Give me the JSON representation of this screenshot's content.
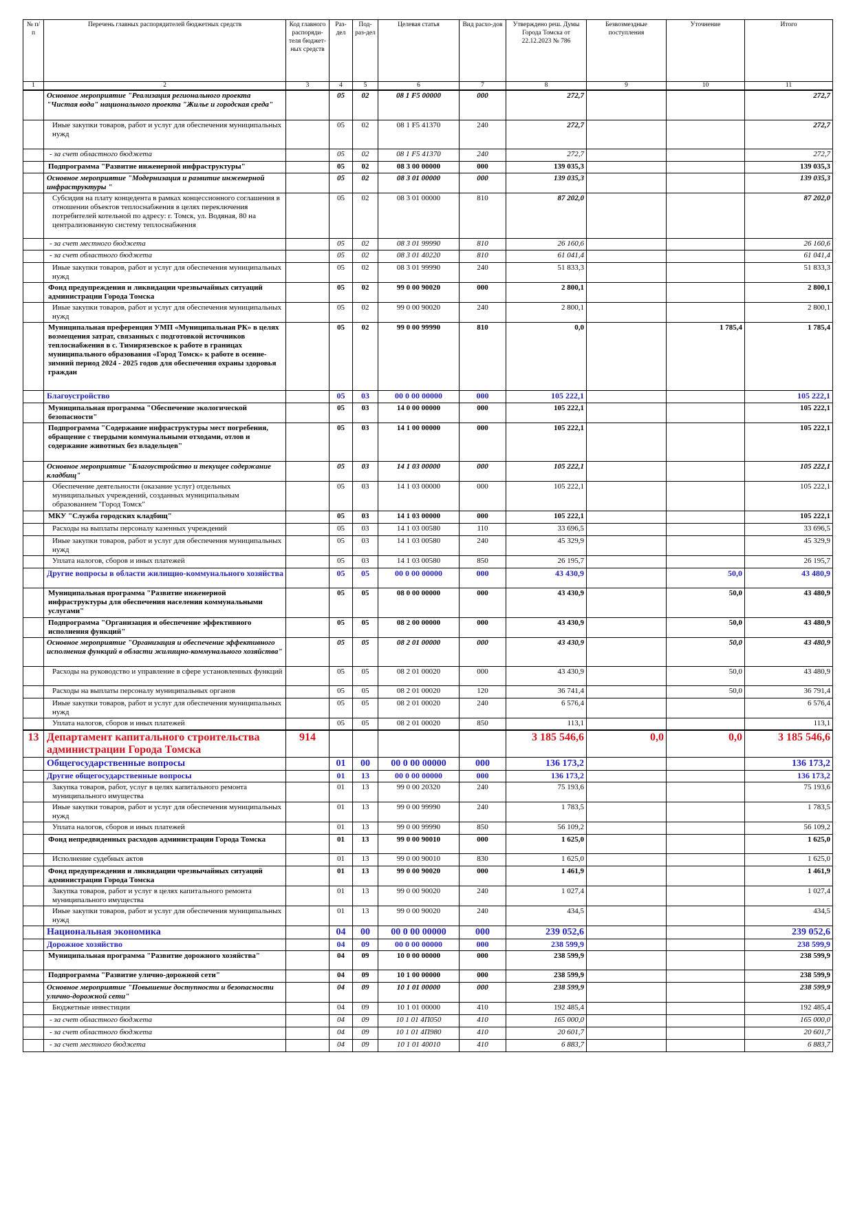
{
  "table": {
    "header": [
      "№ п/п",
      "Перечень главных распорядителей бюджетных средств",
      "Код главного распоряди-теля бюджет-ных средств",
      "Раз-дел",
      "Под-раз-дел",
      "Целевая статья",
      "Вид расхо-дов",
      "Утверждено реш. Думы Города Томска от 22.12.2023 № 786",
      "Безвозмездные поступления",
      "Уточнение",
      "Итого"
    ],
    "column_numbers": [
      "1",
      "2",
      "3",
      "4",
      "5",
      "6",
      "7",
      "8",
      "9",
      "10",
      "11"
    ],
    "rows": [
      [
        null,
        "Основное мероприятие \"Реализация регионального проекта \"Чистая вода\" национального проекта \"Жилье и городская среда\"",
        null,
        "05",
        "02",
        "08 1 F5 00000",
        "000",
        "272,7",
        null,
        null,
        "272,7"
      ],
      [
        null,
        "Иные закупки товаров, работ и услуг для обеспечения муниципальных нужд",
        null,
        "05",
        "02",
        "08 1 F5 41370",
        "240",
        "272,7",
        null,
        null,
        "272,7"
      ],
      [
        null,
        "- за счет областного бюджета",
        null,
        "05",
        "02",
        "08 1 F5 41370",
        "240",
        "272,7",
        null,
        null,
        "272,7"
      ],
      [
        null,
        "Подпрограмма \"Развитие инженерной инфраструктуры\"",
        null,
        "05",
        "02",
        "08 3 00 00000",
        "000",
        "139 035,3",
        null,
        null,
        "139 035,3"
      ],
      [
        null,
        "Основное мероприятие \"Модернизация и развитие инженерной инфраструктуры \"",
        null,
        "05",
        "02",
        "08 3 01 00000",
        "000",
        "139 035,3",
        null,
        null,
        "139 035,3"
      ],
      [
        null,
        "Субсидия на плату концедента в рамках концессионного соглашения в отношении объектов теплоснабжения в целях переключения потребителей котельной по адресу: г. Томск, ул. Водяная, 80 на централизованную систему теплоснабжения",
        null,
        "05",
        "02",
        "08 3 01 00000",
        "810",
        "87 202,0",
        null,
        null,
        "87 202,0"
      ],
      [
        null,
        "- за счет местного бюджета",
        null,
        "05",
        "02",
        "08 3 01 99990",
        "810",
        "26 160,6",
        null,
        null,
        "26 160,6"
      ],
      [
        null,
        "- за счет областного бюджета",
        null,
        "05",
        "02",
        "08 3 01 40220",
        "810",
        "61 041,4",
        null,
        null,
        "61 041,4"
      ],
      [
        null,
        "Иные закупки товаров, работ и услуг для обеспечения муниципальных нужд",
        null,
        "05",
        "02",
        "08 3 01 99990",
        "240",
        "51 833,3",
        null,
        null,
        "51 833,3"
      ],
      [
        null,
        "Фонд предупреждения и ликвидации чрезвычайных ситуаций администрации Города Томска",
        null,
        "05",
        "02",
        "99 0 00 90020",
        "000",
        "2 800,1",
        null,
        null,
        "2 800,1"
      ],
      [
        null,
        "Иные закупки товаров, работ и услуг для обеспечения муниципальных нужд",
        null,
        "05",
        "02",
        "99 0 00 90020",
        "240",
        "2 800,1",
        null,
        null,
        "2 800,1"
      ],
      [
        null,
        "Муниципальная преференция УМП «Муниципальная РК» в целях возмещения затрат, связанных с подготовкой источников теплоснабжения в с. Тимирязевское к работе в границах муниципального образования «Город Томск» к работе в осенне-зимний период 2024 - 2025 годов для обеспечения охраны здоровья граждан",
        null,
        "05",
        "02",
        "99 0 00 99990",
        "810",
        "0,0",
        null,
        "1 785,4",
        "1 785,4"
      ],
      [
        null,
        "Благоустройство",
        null,
        "05",
        "03",
        "00 0 00 00000",
        "000",
        "105 222,1",
        null,
        null,
        "105 222,1"
      ],
      [
        null,
        "Муниципальная программа \"Обеспечение экологической безопасности\"",
        null,
        "05",
        "03",
        "14 0 00 00000",
        "000",
        "105 222,1",
        null,
        null,
        "105 222,1"
      ],
      [
        null,
        "Подпрограмма \"Содержание инфраструктуры мест погребения, обращение с твердыми коммунальными отходами, отлов и содержание животных без владельцев\"",
        null,
        "05",
        "03",
        "14 1 00 00000",
        "000",
        "105 222,1",
        null,
        null,
        "105 222,1"
      ],
      [
        null,
        "Основное мероприятие \"Благоустройство и текущее содержание кладбищ\"",
        null,
        "05",
        "03",
        "14 1 03 00000",
        "000",
        "105 222,1",
        null,
        null,
        "105 222,1"
      ],
      [
        null,
        "Обеспечение деятельности (оказание услуг) отдельных муниципальных учреждений, созданных муниципальным образованием \"Город Томск\"",
        null,
        "05",
        "03",
        "14 1 03 00000",
        "000",
        "105 222,1",
        null,
        null,
        "105 222,1"
      ],
      [
        null,
        "МКУ \"Служба городских кладбищ\"",
        null,
        "05",
        "03",
        "14 1 03 00000",
        "000",
        "105 222,1",
        null,
        null,
        "105 222,1"
      ],
      [
        null,
        "Расходы на выплаты персоналу казенных учреждений",
        null,
        "05",
        "03",
        "14 1 03 00580",
        "110",
        "33 696,5",
        null,
        null,
        "33 696,5"
      ],
      [
        null,
        "Иные закупки товаров, работ и услуг для обеспечения муниципальных нужд",
        null,
        "05",
        "03",
        "14 1 03 00580",
        "240",
        "45 329,9",
        null,
        null,
        "45 329,9"
      ],
      [
        null,
        "Уплата налогов, сборов и иных платежей",
        null,
        "05",
        "03",
        "14 1 03 00580",
        "850",
        "26 195,7",
        null,
        null,
        "26 195,7"
      ],
      [
        null,
        "Другие вопросы в области жилищно-коммунального хозяйства",
        null,
        "05",
        "05",
        "00 0 00 00000",
        "000",
        "43 430,9",
        null,
        "50,0",
        "43 480,9"
      ],
      [
        null,
        "Муниципальная программа \"Развитие инженерной инфраструктуры для обеспечения населения коммунальными услугами\"",
        null,
        "05",
        "05",
        "08 0 00 00000",
        "000",
        "43 430,9",
        null,
        "50,0",
        "43 480,9"
      ],
      [
        null,
        "Подпрограмма \"Организация и обеспечение эффективного исполнения функций\"",
        null,
        "05",
        "05",
        "08 2 00 00000",
        "000",
        "43 430,9",
        null,
        "50,0",
        "43 480,9"
      ],
      [
        null,
        "Основное мероприятие \"Организация и обеспечение эффективного исполнения функций в области жилищно-коммунального хозяйства\"",
        null,
        "05",
        "05",
        "08 2 01 00000",
        "000",
        "43 430,9",
        null,
        "50,0",
        "43 480,9"
      ],
      [
        null,
        "Расходы на руководство и управление в сфере установленных функций",
        null,
        "05",
        "05",
        "08 2 01 00020",
        "000",
        "43 430,9",
        null,
        "50,0",
        "43 480,9"
      ],
      [
        null,
        "Расходы на выплаты персоналу муниципальных органов",
        null,
        "05",
        "05",
        "08 2 01 00020",
        "120",
        "36 741,4",
        null,
        "50,0",
        "36 791,4"
      ],
      [
        null,
        "Иные закупки товаров, работ и услуг для обеспечения муниципальных нужд",
        null,
        "05",
        "05",
        "08 2 01 00020",
        "240",
        "6 576,4",
        null,
        null,
        "6 576,4"
      ],
      [
        null,
        "Уплата налогов, сборов и иных платежей",
        null,
        "05",
        "05",
        "08 2 01 00020",
        "850",
        "113,1",
        null,
        null,
        "113,1"
      ],
      [
        "13",
        "Департамент капитального строительства администрации Города Томска",
        "914",
        null,
        null,
        null,
        null,
        "3 185 546,6",
        "0,0",
        "0,0",
        "3 185 546,6"
      ],
      [
        null,
        "Общегосударственные вопросы",
        null,
        "01",
        "00",
        "00 0 00 00000",
        "000",
        "136 173,2",
        null,
        null,
        "136 173,2"
      ],
      [
        null,
        "Другие общегосударственные вопросы",
        null,
        "01",
        "13",
        "00 0 00 00000",
        "000",
        "136 173,2",
        null,
        null,
        "136 173,2"
      ],
      [
        null,
        "Закупка товаров, работ, услуг в целях капитального ремонта муниципального имущества",
        null,
        "01",
        "13",
        "99 0 00 20320",
        "240",
        "75 193,6",
        null,
        null,
        "75 193,6"
      ],
      [
        null,
        "Иные закупки товаров, работ и услуг для обеспечения муниципальных нужд",
        null,
        "01",
        "13",
        "99 0 00 99990",
        "240",
        "1 783,5",
        null,
        null,
        "1 783,5"
      ],
      [
        null,
        "Уплата налогов, сборов и иных платежей",
        null,
        "01",
        "13",
        "99 0 00 99990",
        "850",
        "56 109,2",
        null,
        null,
        "56 109,2"
      ],
      [
        null,
        "Фонд непредвиденных расходов администрации Города Томска",
        null,
        "01",
        "13",
        "99 0 00 90010",
        "000",
        "1 625,0",
        null,
        null,
        "1 625,0"
      ],
      [
        null,
        "Исполнение судебных актов",
        null,
        "01",
        "13",
        "99 0 00 90010",
        "830",
        "1 625,0",
        null,
        null,
        "1 625,0"
      ],
      [
        null,
        "Фонд предупреждения и ликвидации чрезвычайных ситуаций администрации Города Томска",
        null,
        "01",
        "13",
        "99 0 00 90020",
        "000",
        "1 461,9",
        null,
        null,
        "1 461,9"
      ],
      [
        null,
        "Закупка товаров, работ и услуг в целях капитального ремонта муниципального имущества",
        null,
        "01",
        "13",
        "99 0 00 90020",
        "240",
        "1 027,4",
        null,
        null,
        "1 027,4"
      ],
      [
        null,
        "Иные закупки товаров, работ и услуг для обеспечения муниципальных нужд",
        null,
        "01",
        "13",
        "99 0 00 90020",
        "240",
        "434,5",
        null,
        null,
        "434,5"
      ],
      [
        null,
        "Национальная экономика",
        null,
        "04",
        "00",
        "00 0 00 00000",
        "000",
        "239 052,6",
        null,
        null,
        "239 052,6"
      ],
      [
        null,
        "Дорожное хозяйство",
        null,
        "04",
        "09",
        "00 0 00 00000",
        "000",
        "238 599,9",
        null,
        null,
        "238 599,9"
      ],
      [
        null,
        "Муниципальная программа \"Развитие дорожного хозяйства\"",
        null,
        "04",
        "09",
        "10 0 00 00000",
        "000",
        "238 599,9",
        null,
        null,
        "238 599,9"
      ],
      [
        null,
        "Подпрограмма \"Развитие улично-дорожной сети\"",
        null,
        "04",
        "09",
        "10 1 00 00000",
        "000",
        "238 599,9",
        null,
        null,
        "238 599,9"
      ],
      [
        null,
        "Основное мероприятие \"Повышение доступности и безопасности улично-дорожной сети\"",
        null,
        "04",
        "09",
        "10 1 01 00000",
        "000",
        "238 599,9",
        null,
        null,
        "238 599,9"
      ],
      [
        null,
        "Бюджетные инвестиции",
        null,
        "04",
        "09",
        "10 1 01 00000",
        "410",
        "192 485,4",
        null,
        null,
        "192 485,4"
      ],
      [
        null,
        "- за счет областного бюджета",
        null,
        "04",
        "09",
        "10 1 01 4П050",
        "410",
        "165 000,0",
        null,
        null,
        "165 000,0"
      ],
      [
        null,
        "- за счет областного бюджета",
        null,
        "04",
        "09",
        "10 1 01 4П980",
        "410",
        "20 601,7",
        null,
        null,
        "20 601,7"
      ],
      [
        null,
        "- за счет местного бюджета",
        null,
        "04",
        "09",
        "10 1 01 40010",
        "410",
        "6 883,7",
        null,
        null,
        "6 883,7"
      ]
    ]
  }
}
